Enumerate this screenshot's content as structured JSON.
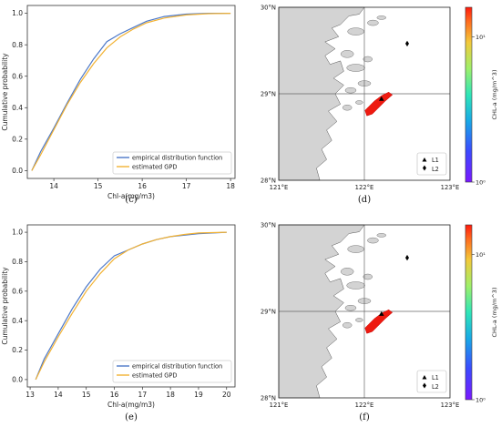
{
  "chart_data": [
    {
      "id": "c",
      "type": "line",
      "caption": "(c)",
      "title": "",
      "xlabel": "Chl-a(mg/m3)",
      "ylabel": "Cumulative probability",
      "xlim": [
        13.4,
        18.1
      ],
      "ylim": [
        -0.05,
        1.05
      ],
      "xticks": [
        14,
        15,
        16,
        17,
        18
      ],
      "yticks": [
        0.0,
        0.2,
        0.4,
        0.6,
        0.8,
        1.0
      ],
      "legend_position": "lower-right",
      "series": [
        {
          "name": "empirical distribution function",
          "color": "#4C78C8",
          "x": [
            13.5,
            13.7,
            14.0,
            14.3,
            14.6,
            14.9,
            15.2,
            15.5,
            15.8,
            16.1,
            16.5,
            17.0,
            17.5,
            18.0
          ],
          "y": [
            0.0,
            0.12,
            0.27,
            0.43,
            0.58,
            0.71,
            0.82,
            0.87,
            0.91,
            0.95,
            0.98,
            0.995,
            1.0,
            1.0
          ]
        },
        {
          "name": "estimated GPD",
          "color": "#F2B233",
          "x": [
            13.5,
            13.7,
            14.0,
            14.3,
            14.6,
            14.9,
            15.2,
            15.5,
            15.8,
            16.1,
            16.5,
            17.0,
            17.5,
            18.0
          ],
          "y": [
            0.0,
            0.1,
            0.26,
            0.42,
            0.56,
            0.68,
            0.78,
            0.85,
            0.9,
            0.94,
            0.97,
            0.99,
            0.998,
            1.0
          ]
        }
      ]
    },
    {
      "id": "e",
      "type": "line",
      "caption": "(e)",
      "title": "",
      "xlabel": "Chl-a(mg/m3)",
      "ylabel": "Cumulative probability",
      "xlim": [
        12.9,
        20.3
      ],
      "ylim": [
        -0.05,
        1.05
      ],
      "xticks": [
        13,
        14,
        15,
        16,
        17,
        18,
        19,
        20
      ],
      "yticks": [
        0.0,
        0.2,
        0.4,
        0.6,
        0.8,
        1.0
      ],
      "legend_position": "lower-right",
      "series": [
        {
          "name": "empirical distribution function",
          "color": "#4C78C8",
          "x": [
            13.2,
            13.5,
            14.0,
            14.5,
            15.0,
            15.5,
            16.0,
            16.5,
            17.0,
            17.5,
            18.0,
            18.5,
            19.0,
            20.0
          ],
          "y": [
            0.0,
            0.14,
            0.31,
            0.48,
            0.63,
            0.75,
            0.84,
            0.88,
            0.92,
            0.95,
            0.97,
            0.98,
            0.99,
            1.0
          ]
        },
        {
          "name": "estimated GPD",
          "color": "#F2B233",
          "x": [
            13.2,
            13.5,
            14.0,
            14.5,
            15.0,
            15.5,
            16.0,
            16.5,
            17.0,
            17.5,
            18.0,
            18.5,
            19.0,
            20.0
          ],
          "y": [
            0.0,
            0.12,
            0.29,
            0.45,
            0.6,
            0.72,
            0.82,
            0.88,
            0.92,
            0.95,
            0.97,
            0.985,
            0.995,
            1.0
          ]
        }
      ]
    },
    {
      "id": "d",
      "type": "map",
      "caption": "(d)",
      "lon_ticks": [
        "121°E",
        "122°E",
        "123°E"
      ],
      "lat_ticks": [
        "30°N",
        "29°N",
        "28°N"
      ],
      "colorbar_label": "CHL-a (mg/m^3)",
      "colorbar_ticks": [
        "10¹",
        "10⁰"
      ],
      "legend": [
        "L1",
        "L2"
      ],
      "points": [
        {
          "name": "L1",
          "lon": 122.2,
          "lat": 28.94,
          "marker": "triangle"
        },
        {
          "name": "L2",
          "lon": 122.5,
          "lat": 29.58,
          "marker": "diamond"
        }
      ]
    },
    {
      "id": "f",
      "type": "map",
      "caption": "(f)",
      "lon_ticks": [
        "121°E",
        "122°E",
        "123°E"
      ],
      "lat_ticks": [
        "30°N",
        "29°N",
        "28°N"
      ],
      "colorbar_label": "CHL-a (mg/m^3)",
      "colorbar_ticks": [
        "10¹",
        "10⁰"
      ],
      "legend": [
        "L1",
        "L2"
      ],
      "points": [
        {
          "name": "L1",
          "lon": 122.2,
          "lat": 28.97,
          "marker": "triangle"
        },
        {
          "name": "L2",
          "lon": 122.5,
          "lat": 29.62,
          "marker": "diamond"
        }
      ]
    }
  ]
}
